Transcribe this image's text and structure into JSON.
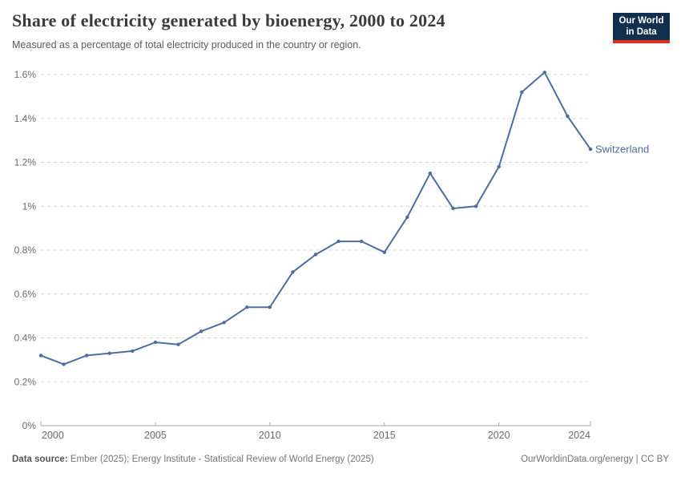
{
  "header": {
    "title": "Share of electricity generated by bioenergy, 2000 to 2024",
    "subtitle": "Measured as a percentage of total electricity produced in the country or region.",
    "logo": {
      "line1": "Our World",
      "line2": "in Data"
    }
  },
  "chart_data": {
    "type": "line",
    "title": "Share of electricity generated by bioenergy, 2000 to 2024",
    "xlabel": "",
    "ylabel": "",
    "ylim": [
      0,
      1.6
    ],
    "xlim": [
      2000,
      2024
    ],
    "grid": "horizontal-dashed",
    "legend_position": "end-of-line-label",
    "x": [
      2000,
      2001,
      2002,
      2003,
      2004,
      2005,
      2006,
      2007,
      2008,
      2009,
      2010,
      2011,
      2012,
      2013,
      2014,
      2015,
      2016,
      2017,
      2018,
      2019,
      2020,
      2021,
      2022,
      2023,
      2024
    ],
    "series": [
      {
        "name": "Switzerland",
        "color": "#4c6da3",
        "values": [
          0.32,
          0.28,
          0.32,
          0.33,
          0.34,
          0.38,
          0.37,
          0.43,
          0.47,
          0.54,
          0.54,
          0.7,
          0.78,
          0.84,
          0.84,
          0.79,
          0.95,
          1.15,
          0.99,
          1.0,
          1.18,
          1.52,
          1.61,
          1.41,
          1.26
        ]
      }
    ],
    "yticks": [
      {
        "value": 0,
        "label": "0%"
      },
      {
        "value": 0.2,
        "label": "0.2%"
      },
      {
        "value": 0.4,
        "label": "0.4%"
      },
      {
        "value": 0.6,
        "label": "0.6%"
      },
      {
        "value": 0.8,
        "label": "0.8%"
      },
      {
        "value": 1,
        "label": "1%"
      },
      {
        "value": 1.2,
        "label": "1.2%"
      },
      {
        "value": 1.4,
        "label": "1.4%"
      },
      {
        "value": 1.6,
        "label": "1.6%"
      }
    ],
    "xticks": [
      {
        "value": 2000,
        "label": "2000"
      },
      {
        "value": 2005,
        "label": "2005"
      },
      {
        "value": 2010,
        "label": "2010"
      },
      {
        "value": 2015,
        "label": "2015"
      },
      {
        "value": 2020,
        "label": "2020"
      },
      {
        "value": 2024,
        "label": "2024"
      }
    ]
  },
  "footer": {
    "source_label": "Data source:",
    "source_text": " Ember (2025); Energy Institute - Statistical Review of World Energy (2025)",
    "right_text": "OurWorldinData.org/energy | CC BY"
  },
  "colors": {
    "line": "#4c6da3",
    "logo_navy": "#12304e",
    "logo_red": "#dc3120",
    "grid": "#dadada",
    "axis": "#a8a8a8",
    "tick_text": "#6b6b6b",
    "title_text": "#3b3b3b"
  }
}
